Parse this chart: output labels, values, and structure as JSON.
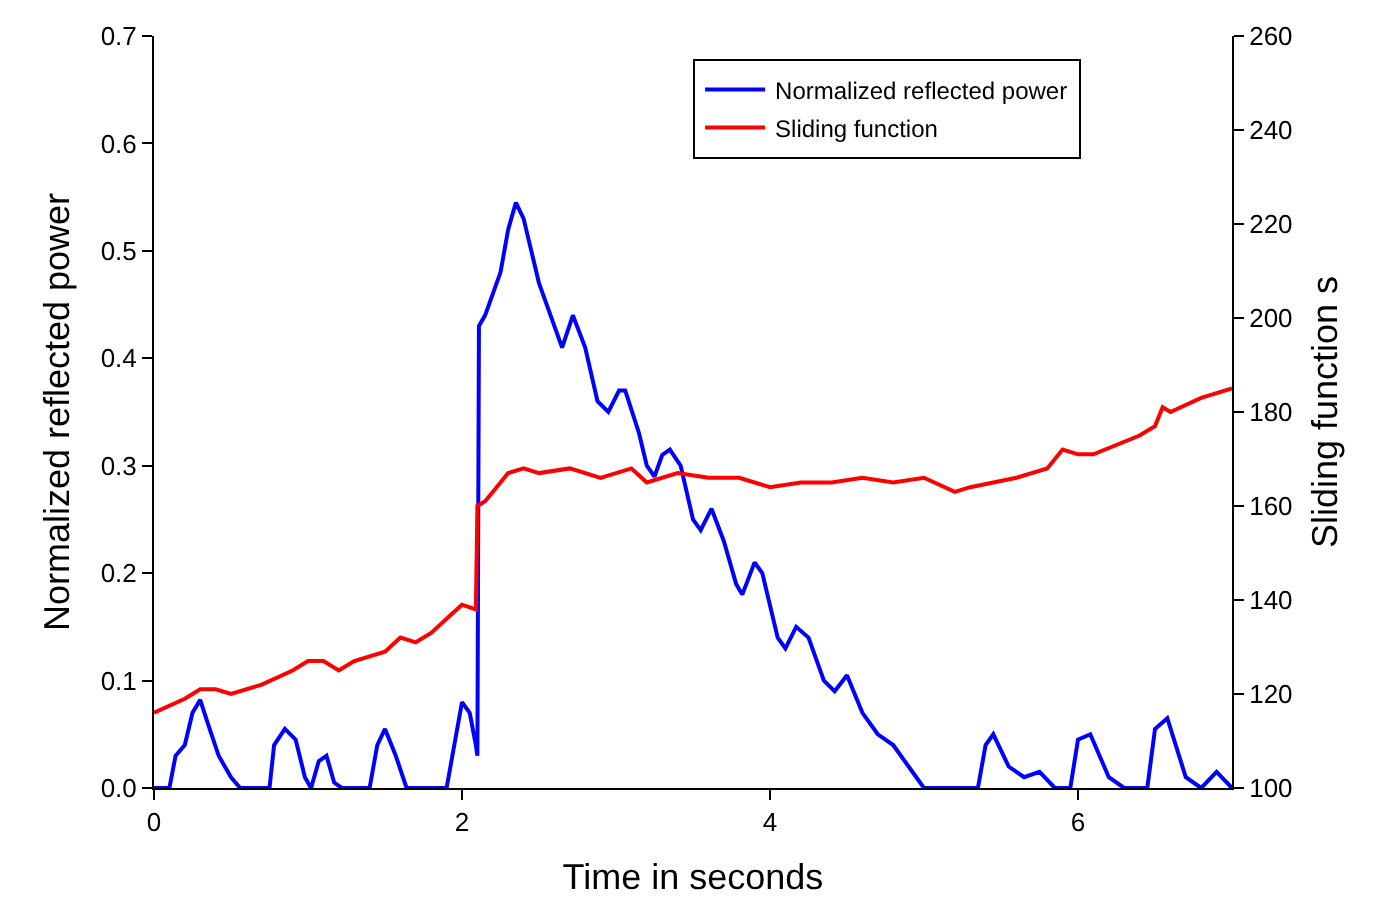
{
  "chart_data": {
    "type": "line",
    "xlabel": "Time in seconds",
    "ylabel": "Normalized reflected power",
    "y2label": "Sliding function s",
    "xlim": [
      0,
      7
    ],
    "xticks": [
      0,
      2,
      4,
      6
    ],
    "ylim": [
      0,
      0.7
    ],
    "yticks": [
      {
        "value": 0,
        "label": "0.0"
      },
      0.1,
      0.2,
      0.3,
      0.4,
      0.5,
      0.6,
      0.7
    ],
    "y2lim": [
      100,
      260
    ],
    "y2ticks": [
      100,
      120,
      140,
      160,
      180,
      200,
      220,
      240,
      260
    ],
    "grid": false,
    "legend": "top right",
    "line_style": "solid",
    "marker": "none",
    "series": [
      {
        "name": "Normalized reflected power",
        "color": "#0000ff",
        "x": [
          0,
          0.1,
          0.14,
          0.2,
          0.25,
          0.3,
          0.35,
          0.42,
          0.5,
          0.56,
          0.75,
          0.78,
          0.85,
          0.92,
          0.98,
          1.02,
          1.07,
          1.12,
          1.17,
          1.22,
          1.4,
          1.45,
          1.5,
          1.57,
          1.64,
          1.9,
          1.95,
          2.0,
          2.05,
          2.09,
          2.1,
          2.11,
          2.15,
          2.2,
          2.25,
          2.3,
          2.35,
          2.4,
          2.45,
          2.5,
          2.6,
          2.65,
          2.72,
          2.8,
          2.88,
          2.95,
          3.02,
          3.06,
          3.15,
          3.2,
          3.25,
          3.3,
          3.35,
          3.42,
          3.5,
          3.55,
          3.62,
          3.7,
          3.78,
          3.82,
          3.9,
          3.95,
          4.05,
          4.1,
          4.17,
          4.25,
          4.35,
          4.42,
          4.5,
          4.6,
          4.7,
          4.8,
          4.9,
          4.95,
          5.0,
          5.35,
          5.4,
          5.45,
          5.55,
          5.65,
          5.75,
          5.85,
          5.95,
          6.0,
          6.08,
          6.2,
          6.3,
          6.45,
          6.5,
          6.58,
          6.7,
          6.8,
          6.9,
          7.0
        ],
        "values": [
          0,
          0,
          0.03,
          0.04,
          0.07,
          0.082,
          0.06,
          0.03,
          0.01,
          0,
          0,
          0.04,
          0.055,
          0.045,
          0.01,
          0,
          0.025,
          0.03,
          0.005,
          0,
          0,
          0.04,
          0.055,
          0.03,
          0,
          0,
          0.04,
          0.08,
          0.07,
          0.04,
          0.03,
          0.43,
          0.44,
          0.46,
          0.48,
          0.52,
          0.545,
          0.53,
          0.5,
          0.47,
          0.43,
          0.41,
          0.44,
          0.41,
          0.36,
          0.35,
          0.37,
          0.37,
          0.33,
          0.3,
          0.29,
          0.31,
          0.315,
          0.3,
          0.25,
          0.24,
          0.26,
          0.23,
          0.19,
          0.18,
          0.21,
          0.2,
          0.14,
          0.13,
          0.15,
          0.14,
          0.1,
          0.09,
          0.105,
          0.07,
          0.05,
          0.04,
          0.02,
          0.01,
          0,
          0,
          0.04,
          0.05,
          0.02,
          0.01,
          0.015,
          0,
          0,
          0.045,
          0.05,
          0.01,
          0,
          0,
          0.055,
          0.065,
          0.01,
          0,
          0.015,
          0
        ]
      },
      {
        "name": "Sliding function",
        "color": "#ff0000",
        "axis": "y2",
        "x": [
          0,
          0.2,
          0.3,
          0.4,
          0.5,
          0.7,
          0.9,
          1.0,
          1.1,
          1.2,
          1.3,
          1.5,
          1.6,
          1.7,
          1.8,
          1.9,
          2.0,
          2.09,
          2.1,
          2.15,
          2.2,
          2.3,
          2.4,
          2.5,
          2.7,
          2.9,
          3.1,
          3.2,
          3.4,
          3.6,
          3.8,
          4.0,
          4.2,
          4.4,
          4.6,
          4.8,
          5.0,
          5.2,
          5.3,
          5.6,
          5.8,
          5.9,
          6.0,
          6.1,
          6.4,
          6.5,
          6.55,
          6.6,
          6.8,
          7.0
        ],
        "values": [
          116,
          119,
          121,
          121,
          120,
          122,
          125,
          127,
          127,
          125,
          127,
          129,
          132,
          131,
          133,
          136,
          139,
          138,
          160,
          161,
          163,
          167,
          168,
          167,
          168,
          166,
          168,
          165,
          167,
          166,
          166,
          164,
          165,
          165,
          166,
          165,
          166,
          163,
          164,
          166,
          168,
          172,
          171,
          171,
          175,
          177,
          181,
          180,
          183,
          185
        ]
      }
    ]
  }
}
